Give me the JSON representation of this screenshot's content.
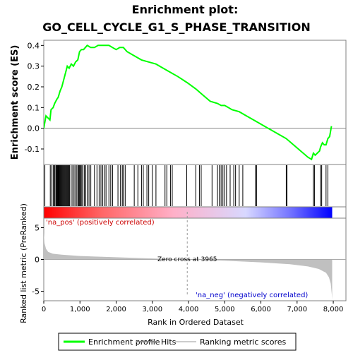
{
  "chart_data": {
    "type": "line",
    "title_line1": "Enrichment plot:",
    "title_line2": "GO_CELL_CYCLE_G1_S_PHASE_TRANSITION",
    "panels": {
      "enrichment": {
        "ylabel": "Enrichment score (ES)",
        "ylim": [
          -0.175,
          0.425
        ],
        "yticks": [
          "0.4",
          "0.3",
          "0.2",
          "0.1",
          "0.0",
          "-0.1"
        ],
        "ytick_values": [
          0.4,
          0.3,
          0.2,
          0.1,
          0.0,
          -0.1
        ],
        "series": [
          {
            "name": "Enrichment profile",
            "color": "#00ff00",
            "x": [
              0,
              60,
              170,
              200,
              260,
              300,
              360,
              400,
              450,
              500,
              560,
              620,
              650,
              700,
              760,
              820,
              880,
              940,
              990,
              1040,
              1100,
              1150,
              1200,
              1300,
              1400,
              1500,
              1600,
              1700,
              1800,
              1900,
              2000,
              2100,
              2200,
              2300,
              2500,
              2700,
              2900,
              3100,
              3300,
              3500,
              3700,
              3965,
              4200,
              4400,
              4600,
              4800,
              4900,
              5000,
              5100,
              5200,
              5400,
              5600,
              5900,
              6200,
              6500,
              6700,
              6900,
              7100,
              7300,
              7400,
              7450,
              7500,
              7560,
              7620,
              7650,
              7700,
              7750,
              7800,
              7850,
              7900,
              7950
            ],
            "values": [
              0.0,
              0.06,
              0.04,
              0.09,
              0.1,
              0.12,
              0.14,
              0.15,
              0.18,
              0.2,
              0.24,
              0.28,
              0.3,
              0.29,
              0.31,
              0.3,
              0.32,
              0.33,
              0.37,
              0.38,
              0.38,
              0.39,
              0.4,
              0.39,
              0.39,
              0.4,
              0.4,
              0.4,
              0.4,
              0.39,
              0.38,
              0.39,
              0.39,
              0.37,
              0.35,
              0.33,
              0.32,
              0.31,
              0.29,
              0.27,
              0.25,
              0.22,
              0.19,
              0.16,
              0.13,
              0.12,
              0.11,
              0.11,
              0.1,
              0.09,
              0.08,
              0.06,
              0.03,
              0.0,
              -0.03,
              -0.05,
              -0.08,
              -0.11,
              -0.14,
              -0.15,
              -0.12,
              -0.13,
              -0.12,
              -0.11,
              -0.09,
              -0.07,
              -0.08,
              -0.08,
              -0.05,
              -0.04,
              0.01
            ]
          }
        ],
        "zero_line": true
      },
      "hits": {
        "positions": [
          30,
          180,
          220,
          260,
          290,
          310,
          340,
          360,
          380,
          400,
          420,
          440,
          460,
          480,
          500,
          520,
          540,
          560,
          580,
          600,
          620,
          640,
          660,
          680,
          700,
          720,
          780,
          820,
          860,
          900,
          940,
          960,
          980,
          1000,
          1020,
          1050,
          1080,
          1120,
          1160,
          1200,
          1250,
          1300,
          1400,
          1470,
          1530,
          1580,
          1630,
          1680,
          1720,
          1800,
          1850,
          1900,
          2050,
          2120,
          2170,
          2200,
          2250,
          2500,
          2600,
          2700,
          2750,
          2850,
          2900,
          3000,
          3100,
          3350,
          3400,
          3500,
          3550,
          3950,
          4200,
          4300,
          4350,
          4650,
          4800,
          4850,
          4900,
          4950,
          5000,
          5050,
          5150,
          5250,
          5300,
          5400,
          5500,
          5850,
          5880,
          6700,
          6720,
          7450,
          7480,
          7650,
          7680,
          7800,
          7850
        ],
        "color": "#000000"
      },
      "ranking": {
        "ylabel": "Ranked list metric (PreRanked)",
        "xlabel": "Rank in Ordered Dataset",
        "ylim": [
          -6.5,
          6.5
        ],
        "yticks": [
          "5",
          "0",
          "-5"
        ],
        "ytick_values": [
          5,
          0,
          -5
        ],
        "xticks": [
          "0",
          "1,000",
          "2,000",
          "3,000",
          "4,000",
          "5,000",
          "6,000",
          "7,000",
          "8,000"
        ],
        "xtick_values": [
          0,
          1000,
          2000,
          3000,
          4000,
          5000,
          6000,
          7000,
          8000
        ],
        "xlim": [
          0,
          8350
        ],
        "n_genes": 7970,
        "zero_cross": 3965,
        "zero_cross_label": "Zero cross at 3965",
        "pos_label": "'na_pos' (positively correlated)",
        "neg_label": "'na_neg' (negatively correlated)",
        "fill_color": "#c0c0c0",
        "curve_ranks": [
          0,
          20,
          60,
          120,
          250,
          500,
          1000,
          2000,
          3000,
          3965,
          5000,
          6000,
          6800,
          7300,
          7600,
          7800,
          7880,
          7930,
          7960,
          7970
        ],
        "curve_values": [
          4.2,
          2.6,
          1.7,
          1.2,
          0.9,
          0.75,
          0.55,
          0.35,
          0.15,
          0.0,
          -0.2,
          -0.45,
          -0.75,
          -1.1,
          -1.5,
          -2.1,
          -2.8,
          -3.8,
          -5.5,
          -6.3
        ]
      },
      "gradient_bar": {
        "colors": [
          "#ff0000",
          "#ff6666",
          "#ffb0c8",
          "#d8d8ff",
          "#7777ff",
          "#0000ff"
        ],
        "stops": [
          0.0,
          0.2,
          0.45,
          0.7,
          0.85,
          1.0
        ]
      }
    },
    "legend": {
      "position": "bottom",
      "entries": [
        {
          "label": "Enrichment profile",
          "color": "#00ff00",
          "kind": "line"
        },
        {
          "label": "Hits",
          "color": "#888888",
          "kind": "line"
        },
        {
          "label": "Ranking metric scores",
          "color": "#cccccc",
          "kind": "line"
        }
      ]
    }
  }
}
